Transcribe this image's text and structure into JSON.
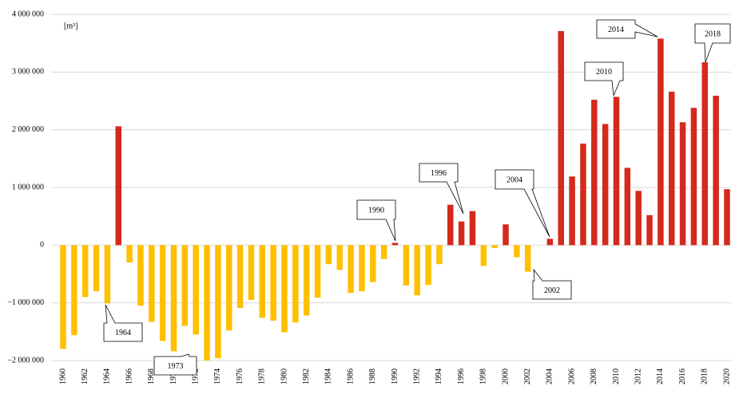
{
  "chart_data": {
    "type": "bar",
    "y_label": "[m³]",
    "categories": [
      "1960",
      null,
      "1962",
      null,
      "1964",
      null,
      "1966",
      null,
      "1968",
      null,
      "1970",
      null,
      "1972",
      null,
      "1974",
      null,
      "1976",
      null,
      "1978",
      null,
      "1980",
      null,
      "1982",
      null,
      "1984",
      null,
      "1986",
      null,
      "1988",
      null,
      "1990",
      null,
      "1992",
      null,
      "1994",
      null,
      "1996",
      null,
      "1998",
      null,
      "2000",
      null,
      "2002",
      null,
      "2004",
      null,
      "2006",
      null,
      "2008",
      null,
      "2010",
      null,
      "2012",
      null,
      "2014",
      null,
      "2016",
      null,
      "2018",
      null,
      "2020"
    ],
    "values": [
      -1800000,
      -1560000,
      -900000,
      -800000,
      -1010000,
      2060000,
      -300000,
      -1050000,
      -1330000,
      -1660000,
      -1840000,
      -1400000,
      -1550000,
      -2000000,
      -1960000,
      -1480000,
      -1090000,
      -950000,
      -1260000,
      -1310000,
      -1510000,
      -1340000,
      -1220000,
      -910000,
      -330000,
      -430000,
      -830000,
      -800000,
      -640000,
      -240000,
      40000,
      -700000,
      -870000,
      -690000,
      -330000,
      700000,
      410000,
      590000,
      -360000,
      -50000,
      360000,
      -210000,
      -460000,
      0,
      110000,
      3710000,
      1190000,
      1760000,
      2520000,
      2100000,
      2570000,
      1340000,
      940000,
      520000,
      3580000,
      2660000,
      2130000,
      2380000,
      3170000,
      2590000,
      970000
    ],
    "color": "#d42a1c",
    "negative_color": "#ffc000",
    "ylim": [
      -2000000,
      4000000
    ],
    "yticks": [
      {
        "value": -2000000,
        "label": "−2 000 000"
      },
      {
        "value": -1000000,
        "label": "−1 000 000"
      },
      0,
      {
        "value": 1000000,
        "label": "1 000 000"
      },
      {
        "value": 2000000,
        "label": "2 000 000"
      },
      {
        "value": 3000000,
        "label": "3 000 000"
      },
      {
        "value": 4000000,
        "label": "4 000 000"
      }
    ],
    "grid": true,
    "annotations": [
      "1964",
      "1973",
      "1990",
      "1996",
      "2002",
      "2004",
      "2010",
      "2014",
      "2018"
    ]
  }
}
